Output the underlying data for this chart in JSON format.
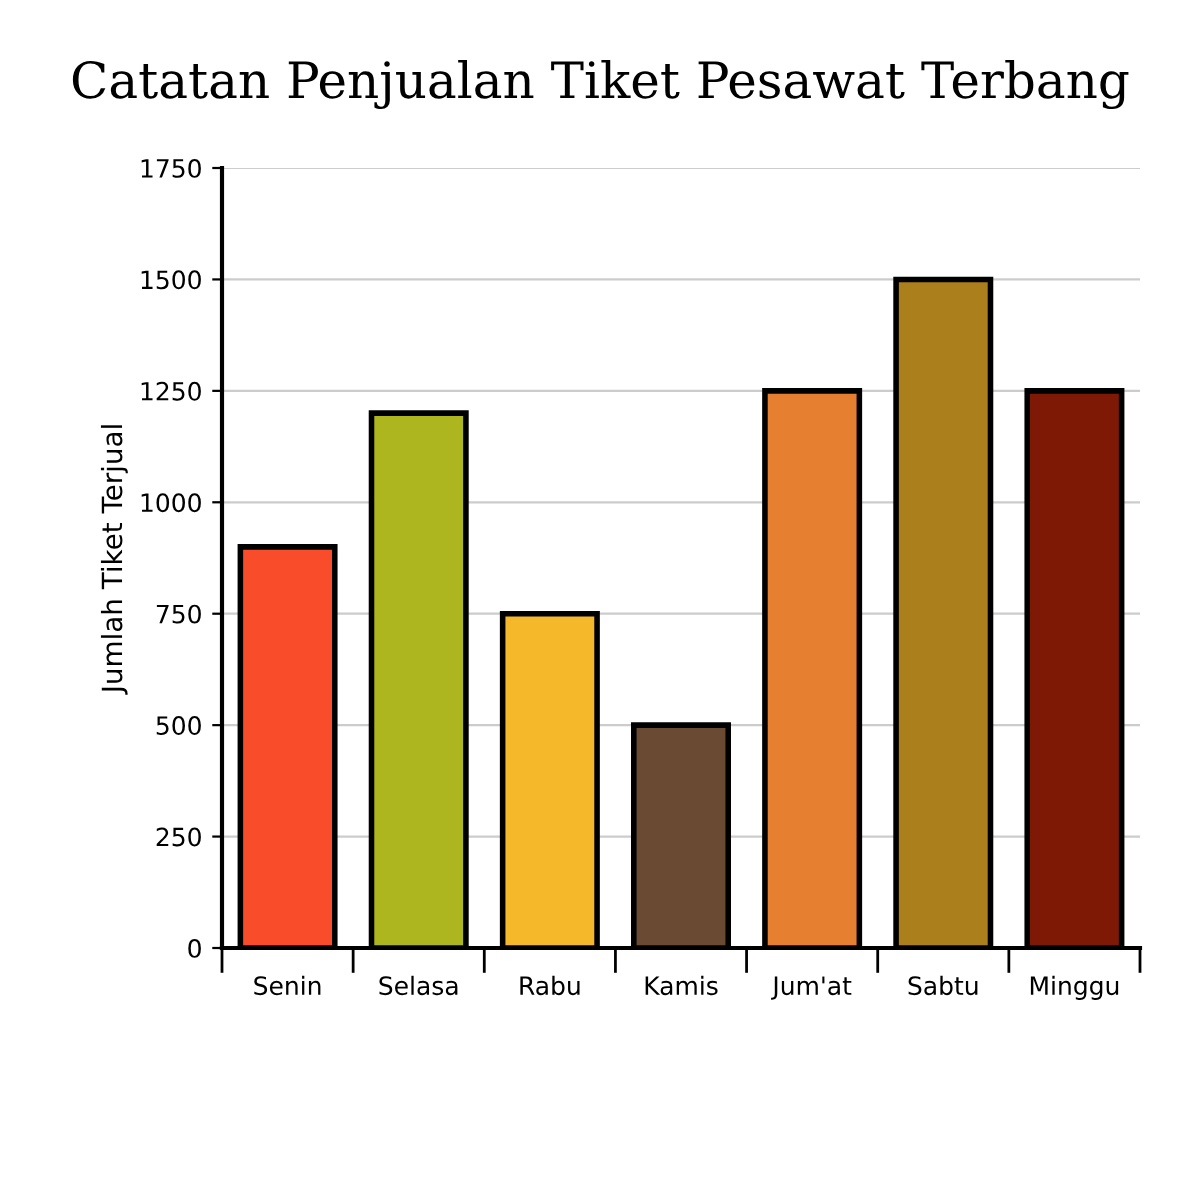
{
  "chart_data": {
    "type": "bar",
    "title": "Catatan Penjualan Tiket Pesawat Terbang",
    "ylabel": "Jumlah Tiket Terjual",
    "categories": [
      "Senin",
      "Selasa",
      "Rabu",
      "Kamis",
      "Jum'at",
      "Sabtu",
      "Minggu"
    ],
    "values": [
      900,
      1200,
      750,
      500,
      1250,
      1500,
      1250
    ],
    "colors": [
      "#f84c2a",
      "#adb61e",
      "#f5b82a",
      "#6b4a33",
      "#e77f30",
      "#ab7f1c",
      "#7e1906"
    ],
    "ylim": [
      0,
      1750
    ],
    "yticks": [
      0,
      250,
      500,
      750,
      1000,
      1250,
      1500,
      1750
    ],
    "grid": "y"
  }
}
